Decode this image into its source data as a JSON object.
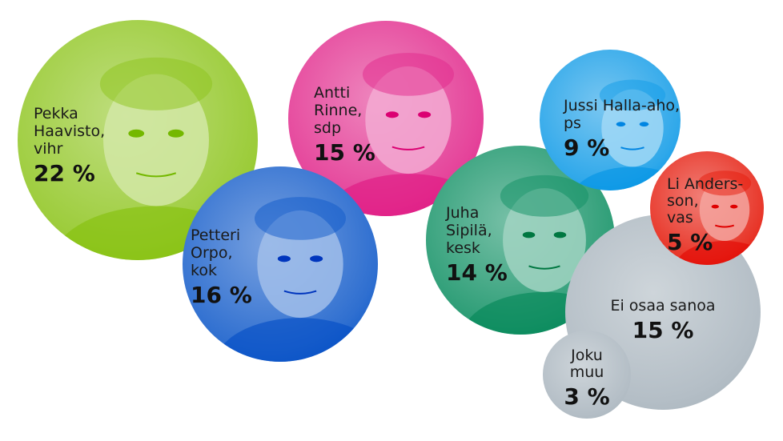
{
  "chart_data": {
    "type": "bubble",
    "unit": "%",
    "items": [
      {
        "name": "Pekka Haavisto, vihr",
        "lines": [
          "Pekka",
          "Haavisto,",
          "vihr"
        ],
        "value": 22,
        "label": "22 %",
        "color": "#9ccc3a"
      },
      {
        "name": "Antti Rinne, sdp",
        "lines": [
          "Antti",
          "Rinne,",
          "sdp"
        ],
        "value": 15,
        "label": "15 %",
        "color": "#e5439a"
      },
      {
        "name": "Petteri Orpo, kok",
        "lines": [
          "Petteri",
          "Orpo,",
          "kok"
        ],
        "value": 16,
        "label": "16 %",
        "color": "#2f6fd0"
      },
      {
        "name": "Juha Sipilä, kesk",
        "lines": [
          "Juha",
          "Sipilä,",
          "kesk"
        ],
        "value": 14,
        "label": "14 %",
        "color": "#2e9e77"
      },
      {
        "name": "Jussi Halla-aho, ps",
        "lines": [
          "Jussi Halla-aho,",
          "ps"
        ],
        "value": 9,
        "label": "9 %",
        "color": "#2fa8ea"
      },
      {
        "name": "Ei osaa sanoa",
        "lines": [
          "Ei osaa sanoa"
        ],
        "value": 15,
        "label": "15 %",
        "color": "#b4bec6"
      },
      {
        "name": "Li Andersson, vas",
        "lines": [
          "Li Anders-",
          "son,",
          "vas"
        ],
        "value": 5,
        "label": "5 %",
        "color": "#e8372a"
      },
      {
        "name": "Joku muu",
        "lines": [
          "Joku",
          "muu"
        ],
        "value": 3,
        "label": "3 %",
        "color": "#b4bec6"
      }
    ]
  }
}
